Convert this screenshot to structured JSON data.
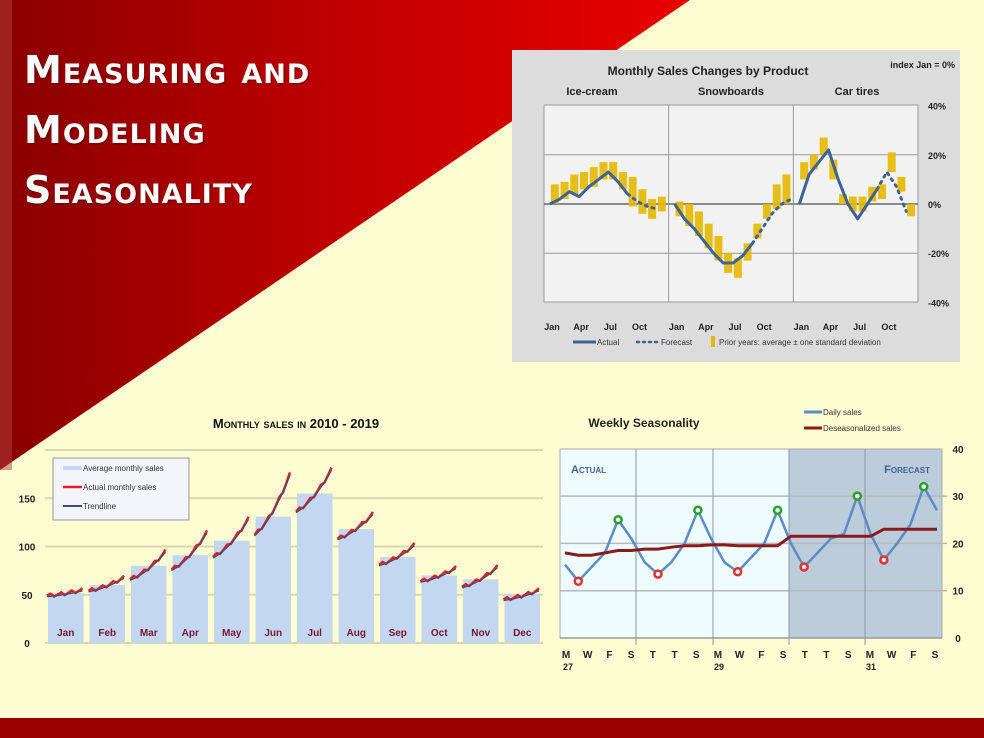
{
  "slide": {
    "title_lines": [
      "Measuring and",
      "Modeling",
      "Seasonality"
    ],
    "colors": {
      "red": "#cc0000",
      "dark_red": "#990000",
      "background": "#fefed2"
    }
  },
  "chart_data": [
    {
      "id": "monthly-sales-changes",
      "type": "line",
      "title": "Monthly Sales Changes by Product",
      "annotation": "index Jan = 0%",
      "panels": [
        "Ice-cream",
        "Snowboards",
        "Car tires"
      ],
      "x_ticks": [
        "Jan",
        "Apr",
        "Jul",
        "Oct",
        "Jan",
        "Apr",
        "Jul",
        "Oct",
        "Jan",
        "Apr",
        "Jul",
        "Oct"
      ],
      "y_ticks": [
        "40%",
        "20%",
        "0%",
        "-20%",
        "-40%"
      ],
      "ylim": [
        -40,
        40
      ],
      "legend": [
        "Actual",
        "Forecast",
        "Prior years: average ± one standard deviation"
      ],
      "series": [
        {
          "name": "Ice-cream Actual",
          "values": [
            0,
            2,
            5,
            3,
            7,
            10,
            13,
            9,
            4
          ],
          "forecast": [
            4,
            1,
            -1,
            -2
          ]
        },
        {
          "name": "Snowboards Actual",
          "values": [
            0,
            -6,
            -10,
            -15,
            -20,
            -24,
            -24,
            -21,
            -16
          ],
          "forecast": [
            -16,
            -10,
            -4,
            0,
            2
          ]
        },
        {
          "name": "Car tires Actual",
          "values": [
            0,
            12,
            17,
            22,
            10,
            0,
            -6,
            0,
            6
          ],
          "forecast": [
            6,
            13,
            7,
            -3
          ]
        }
      ],
      "bands": [
        {
          "panel": "Ice-cream",
          "ranges": [
            [
              0,
              8
            ],
            [
              2,
              9
            ],
            [
              4,
              12
            ],
            [
              6,
              13
            ],
            [
              7,
              15
            ],
            [
              10,
              17
            ],
            [
              10,
              17
            ],
            [
              6,
              13
            ],
            [
              -1,
              11
            ],
            [
              -4,
              6
            ],
            [
              -6,
              2
            ],
            [
              -3,
              3
            ]
          ]
        },
        {
          "panel": "Snowboards",
          "ranges": [
            [
              -5,
              1
            ],
            [
              -9,
              0
            ],
            [
              -13,
              -3
            ],
            [
              -18,
              -8
            ],
            [
              -23,
              -13
            ],
            [
              -28,
              -20
            ],
            [
              -30,
              -22
            ],
            [
              -23,
              -16
            ],
            [
              -14,
              -8
            ],
            [
              -6,
              0
            ],
            [
              -2,
              8
            ],
            [
              0,
              12
            ]
          ]
        },
        {
          "panel": "Car tires",
          "ranges": [
            [
              10,
              17
            ],
            [
              14,
              20
            ],
            [
              20,
              27
            ],
            [
              10,
              18
            ],
            [
              0,
              4
            ],
            [
              -3,
              3
            ],
            [
              -3,
              3
            ],
            [
              1,
              7
            ],
            [
              2,
              8
            ],
            [
              13,
              21
            ],
            [
              5,
              11
            ],
            [
              -5,
              0
            ]
          ]
        }
      ]
    },
    {
      "id": "monthly-sales-2010-2019",
      "type": "bar",
      "title": "Monthly sales in 2010 - 2019",
      "categories": [
        "Jan",
        "Feb",
        "Mar",
        "Apr",
        "May",
        "Jun",
        "Jul",
        "Aug",
        "Sep",
        "Oct",
        "Nov",
        "Dec"
      ],
      "values": [
        52,
        60,
        80,
        91,
        106,
        131,
        155,
        118,
        89,
        70,
        66,
        51
      ],
      "actual_ranges": [
        [
          49,
          55
        ],
        [
          54,
          68
        ],
        [
          66,
          95
        ],
        [
          76,
          115
        ],
        [
          89,
          129
        ],
        [
          112,
          175
        ],
        [
          136,
          180
        ],
        [
          108,
          134
        ],
        [
          81,
          102
        ],
        [
          64,
          78
        ],
        [
          58,
          79
        ],
        [
          45,
          55
        ]
      ],
      "y_ticks": [
        0,
        50,
        100,
        150
      ],
      "ylim": [
        0,
        200
      ],
      "legend": [
        "Average monthly sales",
        "Actual monthly sales",
        "Trendline"
      ]
    },
    {
      "id": "weekly-seasonality",
      "type": "line",
      "title": "Weekly Seasonality",
      "regions": [
        "Actual",
        "Forecast"
      ],
      "x_ticks": [
        "M",
        "W",
        "F",
        "S",
        "T",
        "T",
        "S",
        "M",
        "W",
        "F",
        "S",
        "T",
        "T",
        "S",
        "M",
        "W",
        "F",
        "S"
      ],
      "x_subticks": [
        "27",
        "29",
        "31"
      ],
      "y_ticks": [
        0,
        10,
        20,
        30,
        40
      ],
      "ylim": [
        0,
        40
      ],
      "legend": [
        "Daily sales",
        "Deseasonalized sales"
      ],
      "series": [
        {
          "name": "Daily sales",
          "values": [
            15.5,
            12,
            15,
            18,
            25,
            21,
            16,
            13.5,
            16,
            20,
            27,
            21,
            16,
            14,
            17,
            20,
            27,
            20,
            15,
            18,
            21,
            22,
            30,
            22,
            16.5,
            20,
            24,
            32,
            27
          ]
        },
        {
          "name": "Deseasonalized sales",
          "values": [
            18,
            17.5,
            17.5,
            18,
            18.5,
            18.5,
            18.8,
            18.8,
            19.2,
            19.5,
            19.5,
            19.7,
            19.7,
            19.5,
            19.5,
            19.5,
            19.5,
            21.5,
            21.5,
            21.5,
            21.5,
            21.5,
            21.5,
            21.5,
            23,
            23,
            23,
            23,
            23
          ]
        }
      ],
      "peaks": [
        [
          4,
          25
        ],
        [
          10,
          27
        ],
        [
          16,
          27
        ],
        [
          22,
          30
        ],
        [
          27,
          32
        ]
      ],
      "troughs": [
        [
          1,
          12
        ],
        [
          7,
          13.5
        ],
        [
          13,
          14
        ],
        [
          18,
          15
        ],
        [
          24,
          16.5
        ]
      ]
    }
  ]
}
